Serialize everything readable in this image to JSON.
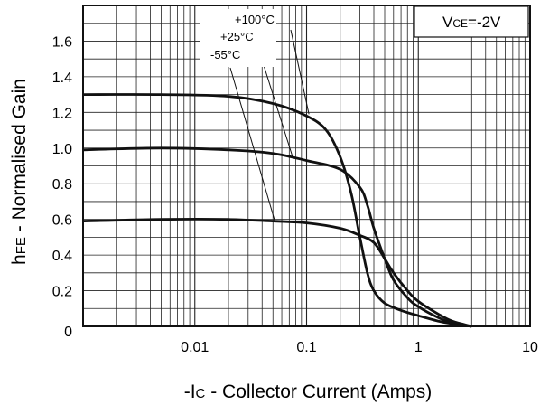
{
  "chart_data": {
    "type": "line",
    "xlabel": "-I C - Collector Current (Amps)",
    "xlabel_parts": {
      "prefix": "-I",
      "sub": "C",
      "rest": " - Collector Current (Amps)"
    },
    "ylabel": "hFE - Normalised Gain",
    "ylabel_parts": {
      "prefix": "h",
      "sub": "FE",
      "rest": " - Normalised Gain"
    },
    "x_scale": "log",
    "xlim": [
      0.001,
      10
    ],
    "ylim": [
      0,
      1.8
    ],
    "x_ticks": [
      0.01,
      0.1,
      1,
      10
    ],
    "x_tick_labels": [
      "0.01",
      "0.1",
      "1",
      "10"
    ],
    "y_ticks": [
      0,
      0.2,
      0.4,
      0.6,
      0.8,
      1.0,
      1.2,
      1.4,
      1.6
    ],
    "y_tick_labels": [
      "0",
      "0.2",
      "0.4",
      "0.6",
      "0.8",
      "1.0",
      "1.2",
      "1.4",
      "1.6"
    ],
    "grid": true,
    "condition_box": {
      "prefix": "V",
      "sub": "CE",
      "rest": "=-2V"
    },
    "series": [
      {
        "name": "+100°C",
        "color": "#111111",
        "points": [
          [
            0.001,
            1.3
          ],
          [
            0.005,
            1.3
          ],
          [
            0.02,
            1.29
          ],
          [
            0.05,
            1.25
          ],
          [
            0.1,
            1.18
          ],
          [
            0.15,
            1.1
          ],
          [
            0.2,
            0.95
          ],
          [
            0.25,
            0.75
          ],
          [
            0.3,
            0.5
          ],
          [
            0.35,
            0.3
          ],
          [
            0.4,
            0.2
          ],
          [
            0.5,
            0.13
          ],
          [
            0.7,
            0.09
          ],
          [
            1.0,
            0.06
          ],
          [
            1.5,
            0.03
          ],
          [
            2.0,
            0.015
          ],
          [
            3.0,
            0.0
          ]
        ]
      },
      {
        "name": "+25°C",
        "color": "#111111",
        "points": [
          [
            0.001,
            0.99
          ],
          [
            0.005,
            1.0
          ],
          [
            0.02,
            0.99
          ],
          [
            0.05,
            0.97
          ],
          [
            0.1,
            0.93
          ],
          [
            0.2,
            0.88
          ],
          [
            0.3,
            0.78
          ],
          [
            0.35,
            0.68
          ],
          [
            0.4,
            0.55
          ],
          [
            0.5,
            0.38
          ],
          [
            0.6,
            0.26
          ],
          [
            0.8,
            0.16
          ],
          [
            1.0,
            0.11
          ],
          [
            1.5,
            0.05
          ],
          [
            2.0,
            0.02
          ],
          [
            3.0,
            0.0
          ]
        ]
      },
      {
        "name": "-55°C",
        "color": "#111111",
        "points": [
          [
            0.001,
            0.59
          ],
          [
            0.005,
            0.6
          ],
          [
            0.02,
            0.6
          ],
          [
            0.05,
            0.59
          ],
          [
            0.1,
            0.58
          ],
          [
            0.2,
            0.55
          ],
          [
            0.3,
            0.51
          ],
          [
            0.4,
            0.47
          ],
          [
            0.5,
            0.38
          ],
          [
            0.6,
            0.3
          ],
          [
            0.8,
            0.2
          ],
          [
            1.0,
            0.14
          ],
          [
            1.5,
            0.07
          ],
          [
            2.0,
            0.03
          ],
          [
            3.0,
            0.0
          ]
        ]
      }
    ],
    "annotations": [
      "+100°C",
      "+25°C",
      "-55°C"
    ]
  }
}
